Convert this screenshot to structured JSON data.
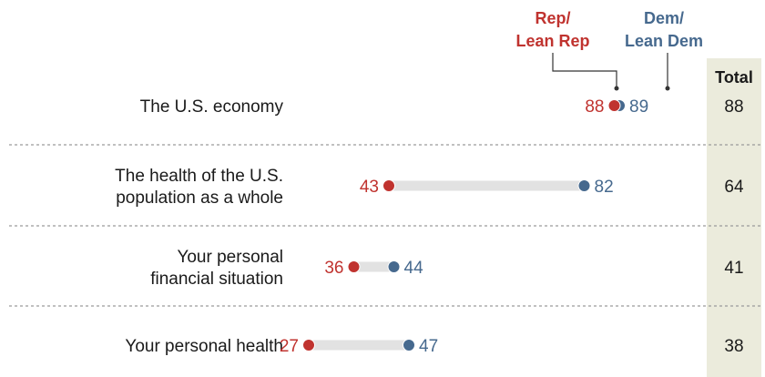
{
  "chart_data": {
    "type": "dot",
    "categories": [
      [
        "The U.S. economy"
      ],
      [
        "The health of the U.S.",
        "population as a whole"
      ],
      [
        "Your personal",
        "financial situation"
      ],
      [
        "Your personal health"
      ]
    ],
    "series": [
      {
        "name": "Rep/ Lean Rep",
        "legend_lines": [
          "Rep/",
          "Lean Rep"
        ],
        "values": [
          88,
          43,
          36,
          27
        ],
        "color": "#c0332f"
      },
      {
        "name": "Dem/ Lean Dem",
        "legend_lines": [
          "Dem/",
          "Lean Dem"
        ],
        "values": [
          89,
          82,
          44,
          47
        ],
        "color": "#46698e"
      }
    ],
    "total": {
      "label": "Total",
      "values": [
        88,
        64,
        41,
        38
      ]
    },
    "colors": {
      "connector": "#e2e2e2",
      "total_bg": "#ebebdc",
      "divider": "#9a9a9a",
      "text": "#1a1a1a"
    }
  }
}
